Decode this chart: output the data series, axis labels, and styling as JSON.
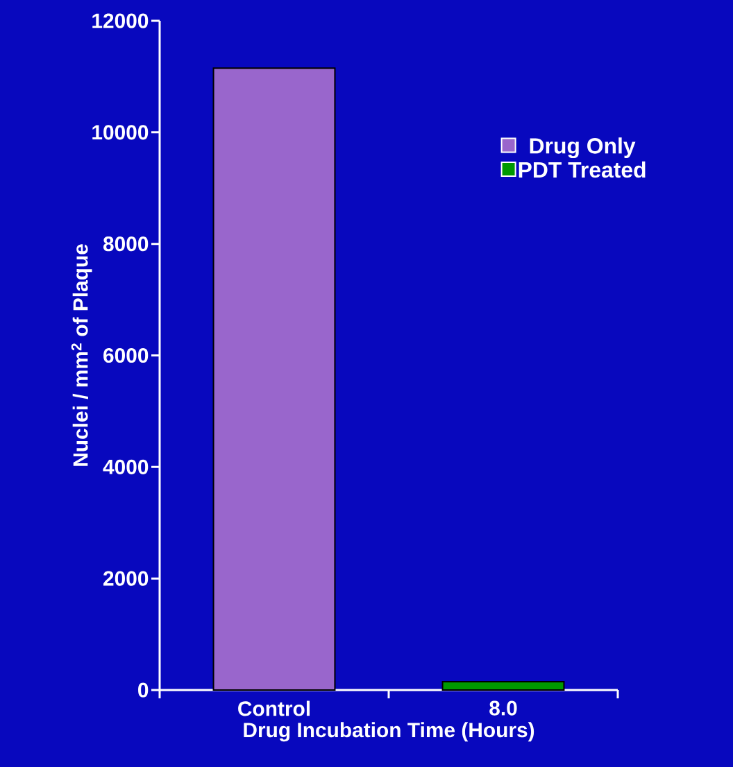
{
  "chart_data": {
    "type": "bar",
    "xlabel": "Drug Incubation Time (Hours)",
    "ylabel": "Nuclei / mm$^{2}$ of Plaque",
    "categories": [
      "Control",
      "8.0"
    ],
    "series": [
      {
        "name": "Drug Only",
        "color": "#9966cc",
        "values": [
          11150,
          null
        ]
      },
      {
        "name": "PDT Treated",
        "color": "#009900",
        "values": [
          null,
          150
        ]
      }
    ],
    "ylim": [
      0,
      12000
    ],
    "yticks": [
      0,
      2000,
      4000,
      6000,
      8000,
      10000,
      12000
    ],
    "grid": false,
    "legend": "top right"
  }
}
